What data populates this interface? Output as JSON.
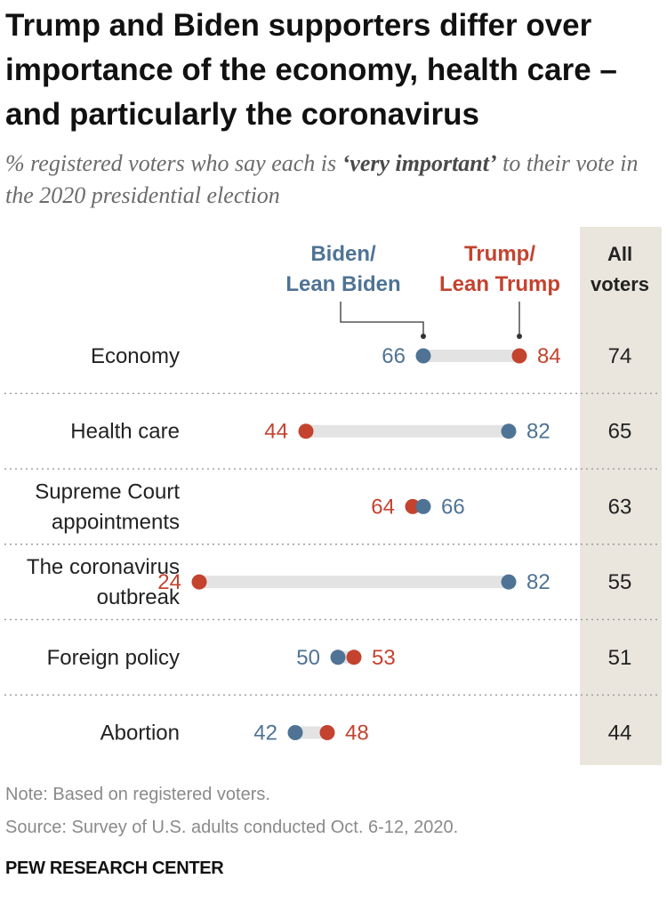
{
  "header": {
    "title": "Trump and Biden supporters differ over importance of the economy, health care – and particularly the coronavirus",
    "subtitle_pre": "% registered voters who say each is ",
    "subtitle_bold": "‘very important’",
    "subtitle_post": " to their vote in the 2020 presidential election"
  },
  "chart_data": {
    "type": "dot",
    "title": "Trump and Biden supporters differ over importance of the economy, health care – and particularly the coronavirus",
    "subtitle": "% registered voters who say each is ‘very important’ to their vote in the 2020 presidential election",
    "xlim": [
      0,
      100
    ],
    "categories": [
      [
        "Economy"
      ],
      [
        "Health care"
      ],
      [
        "Supreme Court",
        "appointments"
      ],
      [
        "The coronavirus",
        "outbreak"
      ],
      [
        "Foreign policy"
      ],
      [
        "Abortion"
      ]
    ],
    "series": [
      {
        "name": "Biden/ Lean Biden",
        "label_lines": [
          "Biden/",
          "Lean Biden"
        ],
        "color": "#4f7395",
        "values": [
          66,
          82,
          66,
          82,
          50,
          42
        ]
      },
      {
        "name": "Trump/ Lean Trump",
        "label_lines": [
          "Trump/",
          "Lean Trump"
        ],
        "color": "#c3432f",
        "values": [
          84,
          44,
          64,
          24,
          53,
          48
        ]
      }
    ],
    "all_voters": {
      "header_lines": [
        "All",
        "voters"
      ],
      "values": [
        74,
        65,
        63,
        55,
        51,
        44
      ]
    },
    "connector_color": "#e3e3e3",
    "all_voters_column_color": "#eae6de",
    "grid": false
  },
  "footer": {
    "note": "Note: Based on registered voters.",
    "source": "Source: Survey of U.S. adults conducted Oct. 6-12, 2020.",
    "brand": "PEW RESEARCH CENTER"
  }
}
